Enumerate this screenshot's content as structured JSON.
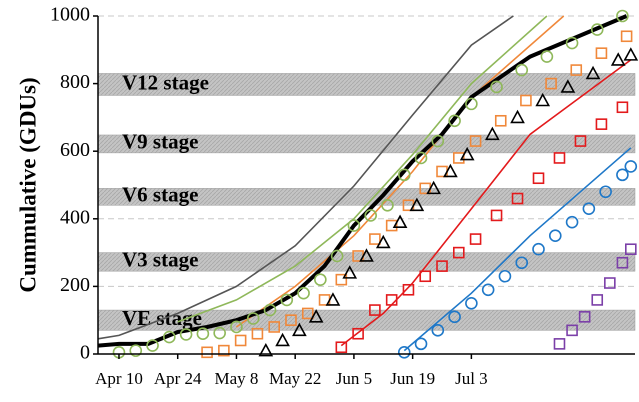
{
  "chart_data": {
    "type": "line",
    "ylabel": "Cummulative (GDUs)",
    "xlim": [
      -5,
      123
    ],
    "ylim": [
      0,
      1000
    ],
    "xticks": [
      {
        "value": 0,
        "label": "Apr 10"
      },
      {
        "value": 14,
        "label": "Apr 24"
      },
      {
        "value": 28,
        "label": "May 8"
      },
      {
        "value": 42,
        "label": "May 22"
      },
      {
        "value": 56,
        "label": "Jun 5"
      },
      {
        "value": 70,
        "label": "Jun 19"
      },
      {
        "value": 84,
        "label": "Jul 3"
      }
    ],
    "yticks": [
      0,
      200,
      400,
      600,
      800,
      1000
    ],
    "grid": true,
    "stages": [
      {
        "label": "VE stage",
        "range": [
          70,
          130
        ]
      },
      {
        "label": "V3 stage",
        "range": [
          245,
          300
        ]
      },
      {
        "label": "V6 stage",
        "range": [
          440,
          490
        ]
      },
      {
        "label": "V9 stage",
        "range": [
          595,
          648
        ]
      },
      {
        "label": "V12 stage",
        "range": [
          765,
          830
        ]
      }
    ],
    "series": [
      {
        "style": "line",
        "color": "#555555",
        "x": [
          -5,
          0,
          14,
          28,
          42,
          56,
          70,
          84,
          94
        ],
        "values": [
          45,
          55,
          120,
          200,
          320,
          497,
          707,
          914,
          1000
        ]
      },
      {
        "style": "line",
        "color": "#8fb85a",
        "x": [
          14,
          28,
          42,
          56,
          70,
          84,
          102
        ],
        "values": [
          95,
          160,
          260,
          400,
          590,
          800,
          1000
        ]
      },
      {
        "style": "line",
        "color": "#f0883a",
        "x": [
          28,
          42,
          56,
          70,
          84,
          106
        ],
        "values": [
          80,
          200,
          350,
          540,
          760,
          1000
        ]
      },
      {
        "style": "line",
        "color": "#e31a1c",
        "x": [
          53,
          63,
          70,
          84,
          98,
          122
        ],
        "values": [
          25,
          120,
          210,
          430,
          650,
          870
        ]
      },
      {
        "style": "line",
        "color": "#1f78c8",
        "x": [
          68,
          84,
          98,
          122
        ],
        "values": [
          10,
          180,
          350,
          610
        ]
      },
      {
        "style": "line",
        "color": "#000000",
        "width": 4,
        "x": [
          -5,
          0,
          7,
          14,
          21,
          28,
          35,
          42,
          49,
          56,
          63,
          70,
          77,
          84,
          98,
          121
        ],
        "values": [
          25,
          30,
          30,
          65,
          80,
          100,
          130,
          180,
          260,
          380,
          470,
          570,
          650,
          760,
          880,
          1000
        ]
      },
      {
        "style": "marker",
        "marker": "circle",
        "color": "#8fb85a",
        "x": [
          0,
          4,
          8,
          12,
          16,
          20,
          24,
          28,
          32,
          36,
          40,
          44,
          48,
          52,
          56,
          60,
          64,
          68,
          72,
          76,
          80,
          84,
          90,
          96,
          102,
          108,
          114,
          120
        ],
        "values": [
          5,
          10,
          25,
          50,
          58,
          60,
          62,
          80,
          105,
          130,
          160,
          180,
          220,
          290,
          380,
          410,
          440,
          530,
          580,
          630,
          690,
          740,
          790,
          840,
          880,
          920,
          960,
          1000
        ]
      },
      {
        "style": "marker",
        "marker": "square",
        "color": "#f0883a",
        "x": [
          21,
          25,
          29,
          33,
          37,
          41,
          45,
          49,
          53,
          57,
          61,
          65,
          69,
          73,
          77,
          81,
          85,
          91,
          97,
          103,
          109,
          115,
          121
        ],
        "values": [
          5,
          10,
          40,
          60,
          80,
          100,
          120,
          160,
          220,
          290,
          340,
          380,
          440,
          490,
          540,
          580,
          630,
          690,
          750,
          800,
          840,
          890,
          940
        ]
      },
      {
        "style": "marker",
        "marker": "triangle",
        "color": "#000000",
        "x": [
          35,
          39,
          43,
          47,
          51,
          55,
          59,
          63,
          67,
          71,
          75,
          79,
          83,
          89,
          95,
          101,
          107,
          113,
          119,
          122
        ],
        "values": [
          10,
          40,
          70,
          110,
          160,
          240,
          290,
          330,
          390,
          440,
          490,
          540,
          590,
          650,
          700,
          750,
          790,
          830,
          870,
          885
        ]
      },
      {
        "style": "marker",
        "marker": "square",
        "color": "#e31a1c",
        "x": [
          53,
          57,
          61,
          65,
          69,
          73,
          77,
          81,
          85,
          90,
          95,
          100,
          105,
          110,
          115,
          120
        ],
        "values": [
          20,
          60,
          130,
          160,
          190,
          230,
          260,
          300,
          340,
          410,
          460,
          520,
          580,
          630,
          680,
          730
        ]
      },
      {
        "style": "marker",
        "marker": "circle",
        "color": "#1f78c8",
        "x": [
          68,
          72,
          76,
          80,
          84,
          88,
          92,
          96,
          100,
          104,
          108,
          112,
          116,
          120,
          122
        ],
        "values": [
          5,
          30,
          70,
          110,
          150,
          190,
          230,
          270,
          310,
          350,
          390,
          430,
          480,
          530,
          555
        ]
      },
      {
        "style": "marker",
        "marker": "square",
        "color": "#7b3fa8",
        "x": [
          105,
          108,
          111,
          114,
          117,
          120,
          122
        ],
        "values": [
          30,
          70,
          110,
          160,
          210,
          270,
          310
        ]
      }
    ]
  }
}
